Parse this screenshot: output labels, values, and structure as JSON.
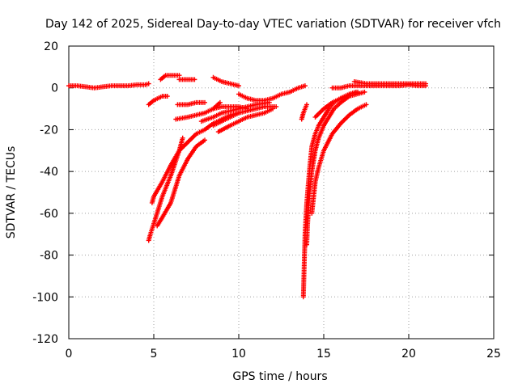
{
  "chart_data": {
    "type": "scatter",
    "title": "Day 142 of 2025, Sidereal Day-to-day VTEC variation (SDTVAR) for receiver vfch",
    "xlabel": "GPS time / hours",
    "ylabel": "SDTVAR / TECUs",
    "xlim": [
      0,
      25
    ],
    "ylim": [
      -120,
      20
    ],
    "xticks": [
      "0",
      "5",
      "10",
      "15",
      "20",
      "25"
    ],
    "yticks": [
      "20",
      "0",
      "-20",
      "-40",
      "-60",
      "-80",
      "-100",
      "-120"
    ],
    "grid": true,
    "legend": "none",
    "marker": "+",
    "color": "#ff0000",
    "series": [
      {
        "x": [
          0,
          0.5,
          1,
          1.5,
          2,
          2.5,
          3,
          3.5,
          4,
          4.5,
          4.7
        ],
        "y": [
          1,
          1,
          0.5,
          0,
          0.5,
          1,
          1,
          1,
          1.5,
          1.5,
          2
        ]
      },
      {
        "x": [
          4.7,
          5,
          5.5,
          5.8
        ],
        "y": [
          -8,
          -6,
          -4,
          -4
        ]
      },
      {
        "x": [
          5.4,
          5.7,
          6,
          6.5
        ],
        "y": [
          4,
          6,
          6,
          6
        ]
      },
      {
        "x": [
          6.5,
          7,
          7.4
        ],
        "y": [
          4,
          4,
          4
        ]
      },
      {
        "x": [
          6.4,
          7,
          7.5,
          8
        ],
        "y": [
          -8,
          -8,
          -7,
          -7
        ]
      },
      {
        "x": [
          6.3,
          7,
          7.5,
          8,
          8.5,
          8.9
        ],
        "y": [
          -15,
          -14,
          -13,
          -12,
          -10,
          -7
        ]
      },
      {
        "x": [
          8.5,
          9,
          9.5,
          10
        ],
        "y": [
          5,
          3,
          2,
          1
        ]
      },
      {
        "x": [
          8.5,
          9,
          10,
          10.5
        ],
        "y": [
          -10,
          -9,
          -9,
          -10
        ]
      },
      {
        "x": [
          7.8,
          8.5,
          9,
          9.5,
          10,
          10.5,
          11,
          11.8
        ],
        "y": [
          -16,
          -14,
          -12,
          -11,
          -10,
          -9,
          -8,
          -7
        ]
      },
      {
        "x": [
          8.5,
          9,
          9.5,
          10,
          10.5,
          11,
          11.5,
          12.2
        ],
        "y": [
          -18,
          -16,
          -14,
          -12,
          -11,
          -10,
          -9,
          -9
        ]
      },
      {
        "x": [
          8.8,
          9.5,
          10,
          10.5,
          11,
          11.5,
          12
        ],
        "y": [
          -21,
          -18,
          -16,
          -14,
          -13,
          -12,
          -10
        ]
      },
      {
        "x": [
          10,
          10.5,
          11,
          11.5,
          12,
          12.5,
          13,
          13.5,
          13.9
        ],
        "y": [
          -3,
          -5,
          -6,
          -6,
          -5,
          -3,
          -2,
          0,
          1
        ]
      },
      {
        "x": [
          4.7,
          4.8,
          5,
          5.5,
          6,
          6.5,
          6.7
        ],
        "y": [
          -73,
          -70,
          -65,
          -52,
          -42,
          -30,
          -24
        ]
      },
      {
        "x": [
          4.9,
          5,
          5.5,
          6,
          6.5,
          7,
          7.5,
          8,
          8.5,
          9,
          9.5,
          10
        ],
        "y": [
          -55,
          -52,
          -45,
          -37,
          -30,
          -26,
          -22,
          -20,
          -17,
          -15,
          -13,
          -12
        ]
      },
      {
        "x": [
          5.2,
          5.5,
          6,
          6.5,
          7,
          7.5,
          8
        ],
        "y": [
          -66,
          -62,
          -55,
          -42,
          -34,
          -28,
          -25
        ]
      },
      {
        "x": [
          13.7,
          13.8,
          14
        ],
        "y": [
          -15,
          -12,
          -8
        ]
      },
      {
        "x": [
          13.8,
          13.85,
          13.9,
          14,
          14.1,
          14.2,
          14.3,
          14.5,
          14.7,
          15,
          15.3,
          15.6,
          16,
          16.5,
          17
        ],
        "y": [
          -100,
          -85,
          -70,
          -55,
          -45,
          -36,
          -28,
          -22,
          -18,
          -14,
          -10,
          -7,
          -5,
          -3,
          -2
        ]
      },
      {
        "x": [
          14,
          14.05,
          14.1,
          14.2,
          14.3,
          14.5,
          14.7,
          15,
          15.3,
          15.6,
          16,
          16.5,
          17.4
        ],
        "y": [
          -75,
          -65,
          -58,
          -48,
          -40,
          -30,
          -24,
          -18,
          -14,
          -10,
          -7,
          -4,
          -2
        ]
      },
      {
        "x": [
          14.3,
          14.5,
          14.7,
          15,
          15.5,
          16,
          16.5,
          17,
          17.5
        ],
        "y": [
          -60,
          -45,
          -38,
          -30,
          -22,
          -17,
          -13,
          -10,
          -8
        ]
      },
      {
        "x": [
          14.5,
          15,
          15.5,
          16,
          16.5,
          16.9
        ],
        "y": [
          -14,
          -10,
          -7,
          -5,
          -3,
          -2
        ]
      },
      {
        "x": [
          15.5,
          16,
          16.5,
          17,
          17.5,
          18,
          18.5,
          19,
          19.5,
          20,
          20.5,
          21
        ],
        "y": [
          0,
          0,
          1,
          1,
          1,
          1,
          1,
          1,
          1,
          1.5,
          1,
          1
        ]
      },
      {
        "x": [
          16.8,
          17.5,
          18,
          19,
          20,
          21
        ],
        "y": [
          3,
          2,
          2,
          2,
          2,
          2
        ]
      }
    ]
  }
}
